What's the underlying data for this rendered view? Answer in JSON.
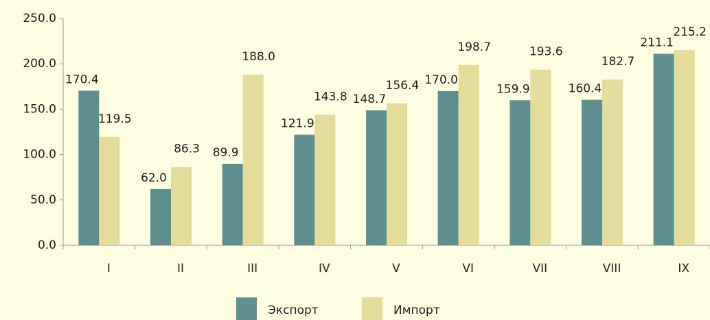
{
  "chart_data": {
    "type": "bar",
    "categories": [
      "I",
      "II",
      "III",
      "IV",
      "V",
      "VI",
      "VII",
      "VIII",
      "IX"
    ],
    "series": [
      {
        "name": "Экспорт",
        "color": "#5f8f8f",
        "values": [
          170.4,
          62.0,
          89.9,
          121.9,
          148.7,
          170.0,
          159.9,
          160.4,
          211.1
        ],
        "value_labels": [
          "170.4",
          "62.0",
          "89.9",
          "121.9",
          "148.7",
          "170.0",
          "159.9",
          "160.4",
          "211.1"
        ]
      },
      {
        "name": "Импорт",
        "color": "#e3dc9a",
        "values": [
          119.5,
          86.3,
          188.0,
          143.8,
          156.4,
          198.7,
          193.6,
          182.7,
          215.2
        ],
        "value_labels": [
          "119.5",
          "86.3",
          "188.0",
          "143.8",
          "156.4",
          "198.7",
          "193.6",
          "182.7",
          "215.2"
        ]
      }
    ],
    "ylim": [
      0,
      250
    ],
    "yticks": [
      {
        "value": 0,
        "label": "0.0"
      },
      {
        "value": 50,
        "label": "50.0"
      },
      {
        "value": 100,
        "label": "100.0"
      },
      {
        "value": 150,
        "label": "150.0"
      },
      {
        "value": 200,
        "label": "200.0"
      },
      {
        "value": 250,
        "label": "250.0"
      }
    ],
    "legend": "bottom"
  }
}
